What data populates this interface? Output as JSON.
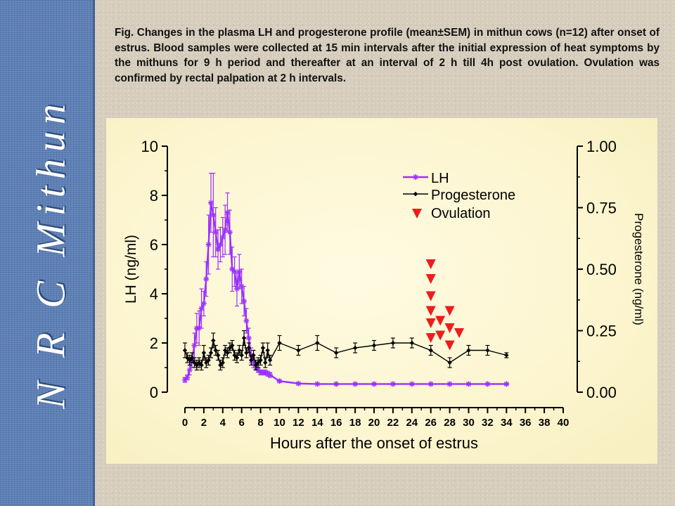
{
  "sidebar": {
    "title": "N R C Mithun"
  },
  "caption": "Fig. Changes in the plasma LH and progesterone profile (mean±SEM) in mithun cows (n=12) after onset of estrus. Blood samples were collected at 15 min intervals after the initial expression of heat symptoms by the mithuns for 9 h period and thereafter at an interval of 2 h till 4h post ovulation. Ovulation was confirmed by rectal palpation at 2 h intervals.",
  "colors": {
    "lh": "#9b30ff",
    "progesterone": "#000000",
    "ovulation": "#ee1c1c",
    "sidebar": "#5c7fb5"
  },
  "chart_data": {
    "type": "line",
    "xlabel": "Hours after the onset of estrus",
    "ylabel": "LH (ng/ml)",
    "y2label": "Progesterone (ng/ml)",
    "xlim": [
      0,
      40
    ],
    "ylim": [
      0,
      10
    ],
    "y2lim": [
      0,
      1
    ],
    "xticks": [
      0,
      2,
      4,
      6,
      8,
      10,
      12,
      14,
      16,
      18,
      20,
      22,
      24,
      26,
      28,
      30,
      32,
      34,
      36,
      38,
      40
    ],
    "yticks": [
      0,
      2,
      4,
      6,
      8,
      10
    ],
    "y2ticks": [
      "0.00",
      "0.25",
      "0.50",
      "0.75",
      "1.00"
    ],
    "legend_position": "top-right",
    "legend": [
      "LH",
      "Progesterone",
      "Ovulation"
    ],
    "series": [
      {
        "name": "LH",
        "axis": "left",
        "marker": "star",
        "x": [
          0,
          0.25,
          0.5,
          0.75,
          1,
          1.25,
          1.5,
          1.75,
          2,
          2.25,
          2.5,
          2.75,
          3,
          3.25,
          3.5,
          3.75,
          4,
          4.25,
          4.5,
          4.75,
          5,
          5.25,
          5.5,
          5.75,
          6,
          6.25,
          6.5,
          6.75,
          7,
          7.25,
          7.5,
          7.75,
          8,
          8.25,
          8.5,
          8.75,
          9,
          10,
          12,
          14,
          16,
          18,
          20,
          22,
          24,
          26,
          28,
          30,
          32,
          34
        ],
        "y": [
          0.5,
          0.6,
          0.9,
          1.3,
          1.9,
          2.6,
          2.6,
          3.4,
          3.6,
          4.6,
          6.0,
          7.7,
          7.2,
          6.5,
          5.8,
          6.0,
          6.3,
          6.6,
          7.3,
          6.5,
          5.0,
          4.9,
          4.2,
          4.9,
          4.3,
          3.7,
          2.9,
          2.2,
          1.5,
          1.2,
          1.0,
          0.9,
          0.8,
          0.8,
          0.8,
          0.75,
          0.7,
          0.45,
          0.35,
          0.33,
          0.33,
          0.33,
          0.33,
          0.33,
          0.33,
          0.33,
          0.33,
          0.33,
          0.33,
          0.33
        ],
        "err": [
          0.1,
          0.1,
          0.2,
          0.3,
          0.5,
          0.6,
          0.7,
          0.8,
          0.5,
          0.7,
          1.2,
          1.2,
          1.7,
          1.0,
          0.8,
          0.7,
          0.8,
          1.0,
          0.8,
          0.9,
          0.9,
          0.6,
          0.7,
          0.7,
          0.7,
          0.6,
          0.5,
          0.4,
          0.3,
          0.2,
          0.1,
          0.1,
          0.1,
          0.1,
          0.1,
          0.1,
          0.1,
          0.05,
          0.03,
          0.03,
          0.03,
          0.03,
          0.03,
          0.03,
          0.03,
          0.03,
          0.03,
          0.03,
          0.03,
          0.03
        ]
      },
      {
        "name": "Progesterone",
        "axis": "right",
        "marker": "diamond",
        "x": [
          0,
          0.25,
          0.5,
          0.75,
          1,
          1.25,
          1.5,
          1.75,
          2,
          2.25,
          2.5,
          2.75,
          3,
          3.25,
          3.5,
          3.75,
          4,
          4.25,
          4.5,
          4.75,
          5,
          5.25,
          5.5,
          5.75,
          6,
          6.25,
          6.5,
          6.75,
          7,
          7.25,
          7.5,
          7.75,
          8,
          8.25,
          8.5,
          8.75,
          9,
          10,
          12,
          14,
          16,
          18,
          20,
          22,
          24,
          26,
          28,
          30,
          32,
          34
        ],
        "y": [
          0.17,
          0.14,
          0.13,
          0.14,
          0.12,
          0.11,
          0.12,
          0.11,
          0.16,
          0.12,
          0.13,
          0.16,
          0.21,
          0.17,
          0.15,
          0.11,
          0.12,
          0.17,
          0.16,
          0.18,
          0.19,
          0.15,
          0.14,
          0.17,
          0.15,
          0.22,
          0.16,
          0.18,
          0.13,
          0.15,
          0.11,
          0.12,
          0.13,
          0.18,
          0.12,
          0.17,
          0.13,
          0.2,
          0.17,
          0.2,
          0.16,
          0.18,
          0.19,
          0.2,
          0.2,
          0.17,
          0.12,
          0.17,
          0.17,
          0.15
        ],
        "err": [
          0.03,
          0.02,
          0.02,
          0.02,
          0.02,
          0.02,
          0.02,
          0.02,
          0.03,
          0.02,
          0.02,
          0.02,
          0.03,
          0.02,
          0.02,
          0.02,
          0.02,
          0.02,
          0.02,
          0.02,
          0.02,
          0.02,
          0.02,
          0.02,
          0.02,
          0.03,
          0.02,
          0.02,
          0.02,
          0.02,
          0.02,
          0.02,
          0.02,
          0.02,
          0.02,
          0.03,
          0.02,
          0.03,
          0.02,
          0.03,
          0.02,
          0.02,
          0.02,
          0.02,
          0.02,
          0.02,
          0.02,
          0.02,
          0.02,
          0.01
        ]
      }
    ],
    "ovulation_markers": [
      {
        "x": 26,
        "y": 5.2
      },
      {
        "x": 26,
        "y": 4.6
      },
      {
        "x": 26,
        "y": 3.9
      },
      {
        "x": 26,
        "y": 3.3
      },
      {
        "x": 26,
        "y": 2.8
      },
      {
        "x": 26,
        "y": 2.2
      },
      {
        "x": 27,
        "y": 2.9
      },
      {
        "x": 27,
        "y": 2.3
      },
      {
        "x": 28,
        "y": 3.3
      },
      {
        "x": 28,
        "y": 2.6
      },
      {
        "x": 28,
        "y": 1.9
      },
      {
        "x": 29,
        "y": 2.4
      }
    ]
  }
}
